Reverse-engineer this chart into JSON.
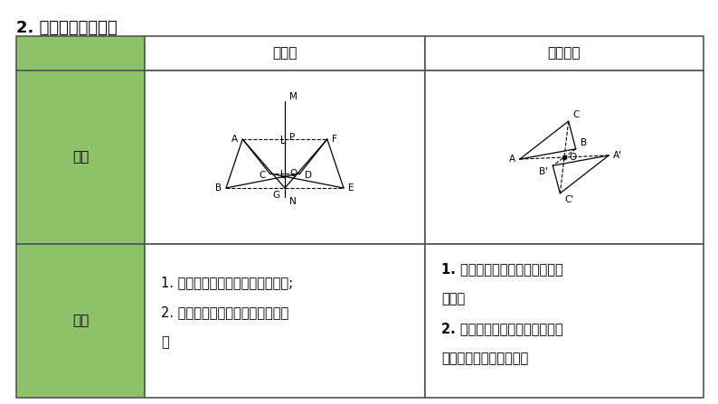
{
  "title": "2. 轴对称与中心对称",
  "background_color": "#ffffff",
  "header_bg": "#8dc26b",
  "table_border_color": "#555555",
  "col1_label": "图形",
  "col2_label": "性质",
  "col_header1": "轴对称",
  "col_header2": "中心对称",
  "text_left_line1": "1. 成轴对称的两个图形是全等图形;",
  "text_left_line2": "2. 对称点所连线段被对称轴垂直平",
  "text_left_line3": "分",
  "text_right_line1": "1. 成中心对称的两个图形是全等",
  "text_right_line2": "图形；",
  "text_right_line3": "2. 对称点所连线段都经过对称中",
  "text_right_line4": "心，并且被对称中心平分",
  "fig_width": 7.94,
  "fig_height": 4.47,
  "dpi": 100
}
